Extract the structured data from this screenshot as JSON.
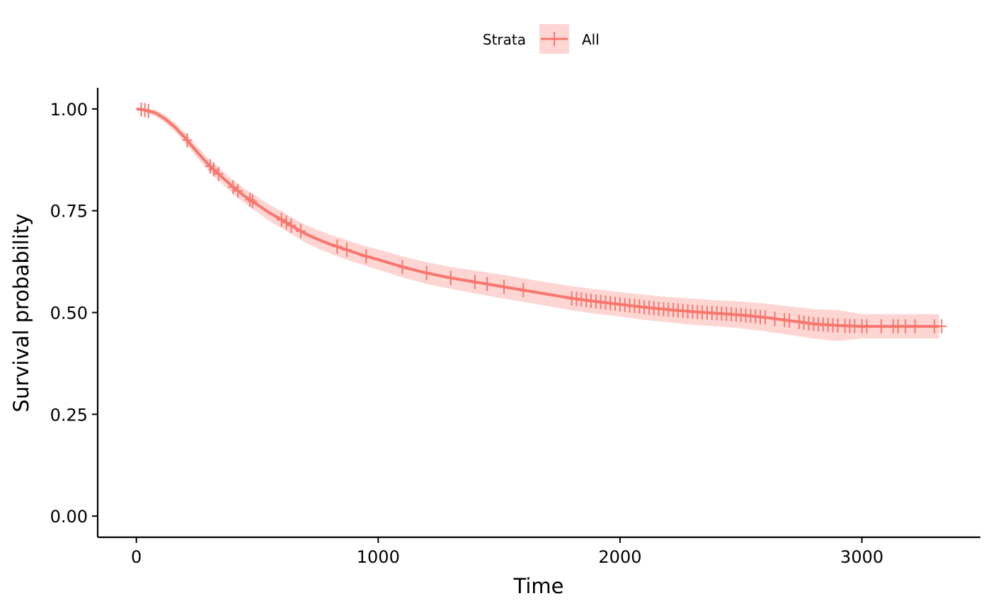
{
  "chart_data": {
    "type": "line",
    "subtype": "kaplan-meier survival curve with confidence band and censor marks",
    "xlabel": "Time",
    "ylabel": "Survival probability",
    "xlim": [
      -160,
      3490
    ],
    "ylim": [
      -0.052,
      1.052
    ],
    "x_ticks": [
      0,
      1000,
      2000,
      3000
    ],
    "x_tick_labels": [
      "0",
      "1000",
      "2000",
      "3000"
    ],
    "y_ticks": [
      0,
      0.25,
      0.5,
      0.75,
      1.0
    ],
    "y_tick_labels": [
      "0.00",
      "0.25",
      "0.50",
      "0.75",
      "1.00"
    ],
    "grid": false,
    "legend": {
      "position": "top",
      "title": "Strata",
      "entries": [
        "All"
      ]
    },
    "colors": {
      "line": "#F8766D",
      "band": "#F8766D",
      "band_opacity": 0.3
    },
    "series": [
      {
        "name": "All",
        "x": [
          0,
          30,
          80,
          120,
          160,
          200,
          250,
          300,
          350,
          400,
          450,
          500,
          550,
          600,
          650,
          700,
          750,
          800,
          850,
          900,
          950,
          1000,
          1100,
          1200,
          1300,
          1400,
          1500,
          1600,
          1700,
          1800,
          1900,
          2000,
          2100,
          2200,
          2300,
          2400,
          2500,
          2600,
          2700,
          2800,
          2900,
          3000,
          3100,
          3200,
          3320
        ],
        "y": [
          1.0,
          0.998,
          0.99,
          0.975,
          0.955,
          0.93,
          0.895,
          0.862,
          0.835,
          0.808,
          0.785,
          0.765,
          0.745,
          0.728,
          0.71,
          0.693,
          0.68,
          0.668,
          0.658,
          0.648,
          0.638,
          0.63,
          0.612,
          0.597,
          0.585,
          0.575,
          0.565,
          0.555,
          0.545,
          0.535,
          0.527,
          0.52,
          0.513,
          0.507,
          0.502,
          0.498,
          0.494,
          0.488,
          0.48,
          0.472,
          0.468,
          0.466,
          0.466,
          0.466,
          0.466
        ],
        "lower": [
          1.0,
          0.994,
          0.982,
          0.965,
          0.944,
          0.918,
          0.881,
          0.847,
          0.819,
          0.791,
          0.767,
          0.746,
          0.725,
          0.707,
          0.689,
          0.671,
          0.657,
          0.645,
          0.634,
          0.624,
          0.614,
          0.605,
          0.586,
          0.57,
          0.558,
          0.547,
          0.536,
          0.526,
          0.516,
          0.505,
          0.497,
          0.49,
          0.482,
          0.476,
          0.47,
          0.466,
          0.461,
          0.454,
          0.445,
          0.436,
          0.43,
          0.436,
          0.436,
          0.436,
          0.436
        ],
        "upper": [
          1.0,
          1.0,
          0.998,
          0.985,
          0.966,
          0.942,
          0.909,
          0.877,
          0.851,
          0.825,
          0.803,
          0.784,
          0.765,
          0.749,
          0.731,
          0.715,
          0.703,
          0.691,
          0.682,
          0.672,
          0.662,
          0.655,
          0.638,
          0.624,
          0.612,
          0.603,
          0.594,
          0.584,
          0.574,
          0.565,
          0.557,
          0.55,
          0.544,
          0.538,
          0.534,
          0.53,
          0.527,
          0.522,
          0.515,
          0.508,
          0.506,
          0.496,
          0.496,
          0.496,
          0.496
        ],
        "censor_times": [
          20,
          35,
          50,
          210,
          305,
          320,
          340,
          400,
          420,
          470,
          480,
          600,
          620,
          640,
          680,
          830,
          870,
          950,
          1100,
          1200,
          1300,
          1400,
          1450,
          1520,
          1600,
          1800,
          1820,
          1840,
          1860,
          1880,
          1900,
          1920,
          1940,
          1960,
          1980,
          2000,
          2020,
          2040,
          2060,
          2080,
          2100,
          2120,
          2140,
          2160,
          2180,
          2200,
          2220,
          2240,
          2260,
          2280,
          2300,
          2320,
          2340,
          2360,
          2380,
          2400,
          2420,
          2440,
          2460,
          2480,
          2500,
          2520,
          2540,
          2560,
          2580,
          2600,
          2640,
          2680,
          2700,
          2740,
          2760,
          2780,
          2800,
          2820,
          2840,
          2860,
          2880,
          2900,
          2930,
          2950,
          2970,
          3000,
          3020,
          3080,
          3130,
          3150,
          3180,
          3220,
          3300,
          3330
        ]
      }
    ]
  }
}
